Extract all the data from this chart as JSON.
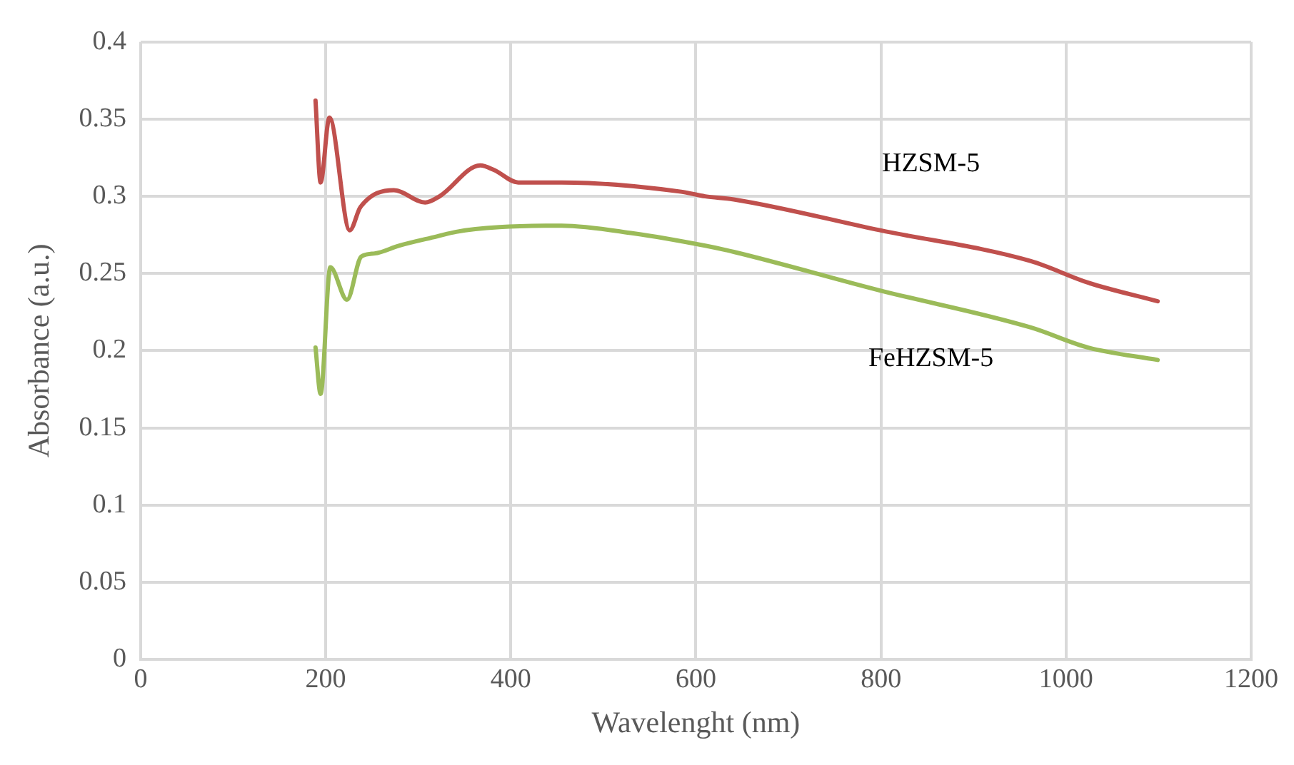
{
  "chart_data": {
    "type": "line",
    "xlabel": "Wavelenght (nm)",
    "ylabel": "Absorbance (a.u.)",
    "xlim": [
      0,
      1200
    ],
    "xticks": [
      0,
      200,
      400,
      600,
      800,
      1000,
      1200
    ],
    "ylim": [
      0,
      0.4
    ],
    "yticks": [
      0,
      0.05,
      0.1,
      0.15,
      0.2,
      0.25,
      0.3,
      0.35,
      0.4
    ],
    "grid": true,
    "legend": false,
    "marker": "none",
    "series": [
      {
        "name": "HZSM-5",
        "color": "#c0504d",
        "x": [
          189,
          194.5,
          204,
          226,
          237.5,
          273.7,
          307.5,
          323,
          367,
          382,
          408,
          455,
          584,
          610,
          641,
          799,
          962,
          1024,
          1099
        ],
        "values": [
          0.362,
          0.309,
          0.351,
          0.278,
          0.293,
          0.304,
          0.296,
          0.3,
          0.32,
          0.317,
          0.309,
          0.309,
          0.303,
          0.3,
          0.298,
          0.278,
          0.258,
          0.244,
          0.232
        ]
      },
      {
        "name": "FeHZSM-5",
        "color": "#9bbb59",
        "x": [
          189,
          194.5,
          205,
          223,
          238.5,
          253,
          279,
          320,
          341,
          387.5,
          455,
          532.5,
          610,
          641,
          799,
          962,
          1024,
          1099
        ],
        "values": [
          0.202,
          0.172,
          0.254,
          0.233,
          0.261,
          0.263,
          0.268,
          0.274,
          0.277,
          0.28,
          0.281,
          0.276,
          0.268,
          0.264,
          0.239,
          0.215,
          0.202,
          0.194
        ]
      }
    ]
  }
}
